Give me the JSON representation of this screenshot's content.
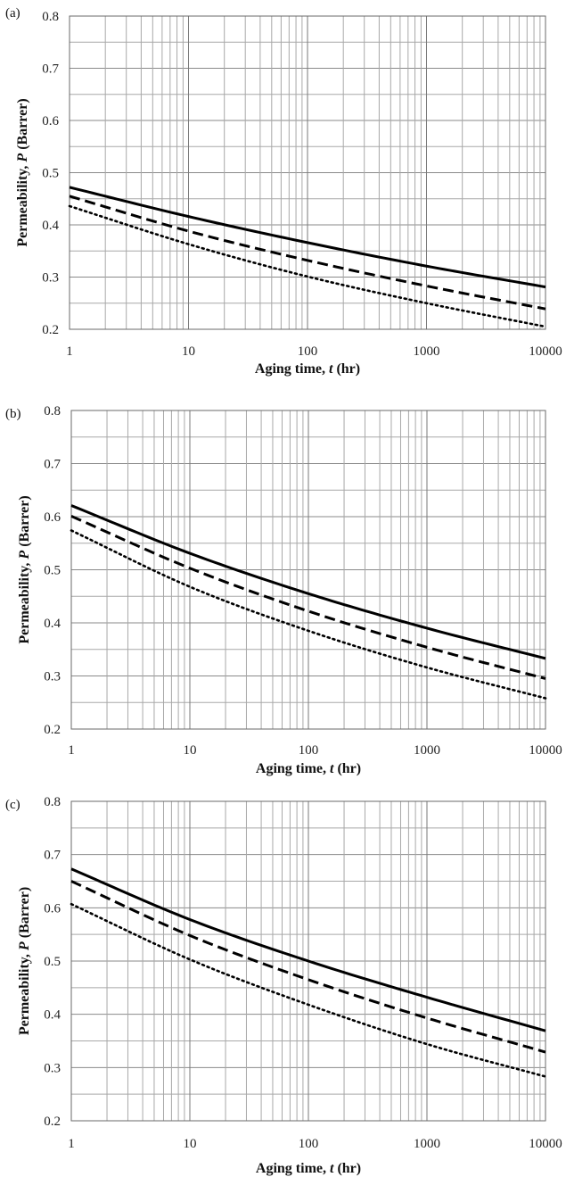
{
  "chart_data": [
    {
      "panel_label": "(a)",
      "type": "line",
      "xscale": "log",
      "xlim": [
        1,
        10000
      ],
      "ylim": [
        0.2,
        0.8
      ],
      "xticks": [
        "1",
        "10",
        "100",
        "1000",
        "10000"
      ],
      "yticks": [
        "0.2",
        "0.3",
        "0.4",
        "0.5",
        "0.6",
        "0.7",
        "0.8"
      ],
      "xlabel_parts": [
        "Aging time, ",
        "t",
        " (hr)"
      ],
      "ylabel_parts": [
        "Permeability, ",
        "P",
        "  (Barrer)"
      ],
      "grid": true,
      "x": [
        1,
        10,
        100,
        1000,
        10000
      ],
      "series": [
        {
          "style": "solid",
          "values": [
            0.472,
            0.416,
            0.366,
            0.321,
            0.281
          ]
        },
        {
          "style": "dashed",
          "values": [
            0.455,
            0.388,
            0.332,
            0.283,
            0.239
          ]
        },
        {
          "style": "dotted",
          "values": [
            0.436,
            0.363,
            0.301,
            0.25,
            0.205
          ]
        }
      ]
    },
    {
      "panel_label": "(b)",
      "type": "line",
      "xscale": "log",
      "xlim": [
        1,
        10000
      ],
      "ylim": [
        0.2,
        0.8
      ],
      "xticks": [
        "1",
        "10",
        "100",
        "1000",
        "10000"
      ],
      "yticks": [
        "0.2",
        "0.3",
        "0.4",
        "0.5",
        "0.6",
        "0.7",
        "0.8"
      ],
      "xlabel_parts": [
        "Aging time, ",
        "t",
        " (hr)"
      ],
      "ylabel_parts": [
        "Permeability, ",
        "P",
        " (Barrer)"
      ],
      "grid": true,
      "x": [
        1,
        10,
        100,
        1000,
        10000
      ],
      "series": [
        {
          "style": "solid",
          "values": [
            0.621,
            0.531,
            0.455,
            0.39,
            0.333
          ]
        },
        {
          "style": "dashed",
          "values": [
            0.601,
            0.503,
            0.422,
            0.354,
            0.295
          ]
        },
        {
          "style": "dotted",
          "values": [
            0.574,
            0.468,
            0.385,
            0.316,
            0.258
          ]
        }
      ]
    },
    {
      "panel_label": "(c)",
      "type": "line",
      "xscale": "log",
      "xlim": [
        1,
        10000
      ],
      "ylim": [
        0.2,
        0.8
      ],
      "xticks": [
        "1",
        "10",
        "100",
        "1000",
        "10000"
      ],
      "yticks": [
        "0.2",
        "0.3",
        "0.4",
        "0.5",
        "0.6",
        "0.7",
        "0.8"
      ],
      "xlabel_parts": [
        "Aging time, ",
        "t",
        " (hr)"
      ],
      "ylabel_parts": [
        "Permeability, ",
        "P",
        " (Barrer)"
      ],
      "grid": true,
      "x": [
        1,
        10,
        100,
        1000,
        10000
      ],
      "series": [
        {
          "style": "solid",
          "values": [
            0.673,
            0.578,
            0.5,
            0.432,
            0.369
          ]
        },
        {
          "style": "dashed",
          "values": [
            0.65,
            0.548,
            0.465,
            0.393,
            0.329
          ]
        },
        {
          "style": "dotted",
          "values": [
            0.607,
            0.503,
            0.418,
            0.344,
            0.283
          ]
        }
      ]
    }
  ]
}
